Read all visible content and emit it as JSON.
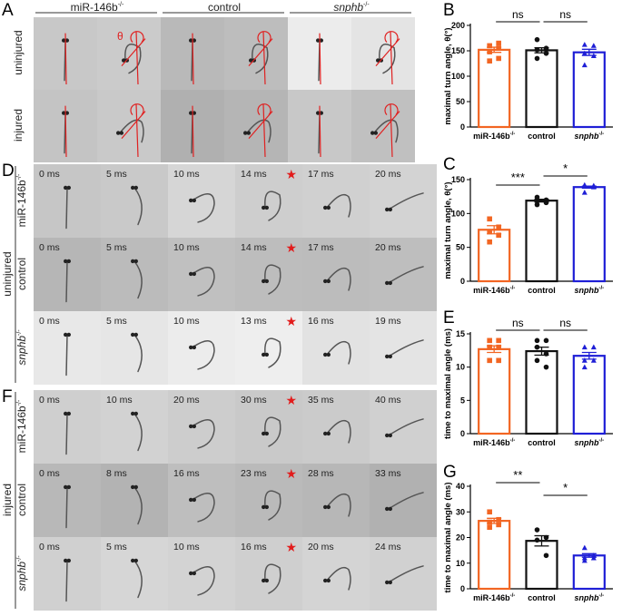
{
  "panelA": {
    "letter": "A",
    "groups": [
      "miR-146b",
      "control",
      "snphb"
    ],
    "group_superscript": "-/-",
    "rows": [
      "uninjured",
      "injured"
    ],
    "theta_label": "θ",
    "tile_shades": [
      [
        "#c8c8c8",
        "#cbcbcb",
        "#b9b9b9",
        "#bdbdbd",
        "#ececec",
        "#e4e4e4"
      ],
      [
        "#c4c4c4",
        "#c9c9c9",
        "#b0b0b0",
        "#b5b5b5",
        "#c8c8c8",
        "#c0c0c0"
      ]
    ]
  },
  "panelD": {
    "letter": "D",
    "condition": "uninjured",
    "rows": [
      {
        "label": "miR-146b",
        "sup": "-/-",
        "italic": false,
        "times": [
          "0 ms",
          "5 ms",
          "10 ms",
          "14 ms",
          "17 ms",
          "20 ms"
        ],
        "star_index": 3,
        "shades": [
          "#c6c6c6",
          "#c9c9c9",
          "#d6d6d6",
          "#cecece",
          "#d0d0d0",
          "#d3d3d3"
        ]
      },
      {
        "label": "control",
        "sup": "",
        "italic": false,
        "times": [
          "0 ms",
          "5 ms",
          "10 ms",
          "14 ms",
          "17 ms",
          "20 ms"
        ],
        "star_index": 3,
        "shades": [
          "#b6b6b6",
          "#bbbbbb",
          "#c0c0c0",
          "#bdbdbd",
          "#bcbcbc",
          "#bebebe"
        ]
      },
      {
        "label": "snphb",
        "sup": "-/-",
        "italic": true,
        "times": [
          "0 ms",
          "5 ms",
          "10 ms",
          "13 ms",
          "16 ms",
          "19 ms"
        ],
        "star_index": 3,
        "shades": [
          "#e8e8e8",
          "#e6e6e6",
          "#ececec",
          "#eeeeee",
          "#e2e2e2",
          "#e4e4e4"
        ]
      }
    ]
  },
  "panelF": {
    "letter": "F",
    "condition": "injured",
    "rows": [
      {
        "label": "miR-146b",
        "sup": "-/-",
        "italic": false,
        "times": [
          "0 ms",
          "10 ms",
          "20 ms",
          "30 ms",
          "35 ms",
          "40 ms"
        ],
        "star_index": 3,
        "shades": [
          "#cfcfcf",
          "#d2d2d2",
          "#cdcdcd",
          "#c9c9c9",
          "#cbcbcb",
          "#d0d0d0"
        ]
      },
      {
        "label": "control",
        "sup": "",
        "italic": false,
        "times": [
          "0 ms",
          "8 ms",
          "16 ms",
          "23 ms",
          "28 ms",
          "33 ms"
        ],
        "star_index": 3,
        "shades": [
          "#b8b8b8",
          "#b3b3b3",
          "#bebebe",
          "#bababa",
          "#b7b7b7",
          "#b1b1b1"
        ]
      },
      {
        "label": "snphb",
        "sup": "-/-",
        "italic": true,
        "times": [
          "0 ms",
          "5 ms",
          "10 ms",
          "16 ms",
          "20 ms",
          "24 ms"
        ],
        "star_index": 3,
        "shades": [
          "#d0d0d0",
          "#d6d6d6",
          "#d3d3d3",
          "#cfcfcf",
          "#d4d4d4",
          "#d1d1d1"
        ]
      }
    ]
  },
  "colors": {
    "mir": "#f26522",
    "control": "#111111",
    "snphb": "#1f1fd6",
    "star": "#e21c1c"
  },
  "chart_data": [
    {
      "panel": "B",
      "type": "bar",
      "ylabel": "maximal turn angle, θ(°)",
      "ylim": [
        0,
        200
      ],
      "yticks": [
        0,
        50,
        100,
        150,
        200
      ],
      "categories": [
        "miR-146b-/-",
        "control",
        "snphb-/-"
      ],
      "values": [
        152,
        151,
        147
      ],
      "sem": [
        5,
        5,
        6
      ],
      "points": [
        [
          148,
          135,
          130,
          155,
          160,
          165
        ],
        [
          172,
          155,
          152,
          152,
          135,
          145
        ],
        [
          162,
          160,
          145,
          140,
          122
        ]
      ],
      "markers": [
        "square",
        "circle",
        "triangle"
      ],
      "significance": [
        {
          "from": 0,
          "to": 1,
          "label": "ns"
        },
        {
          "from": 1,
          "to": 2,
          "label": "ns"
        }
      ]
    },
    {
      "panel": "C",
      "type": "bar",
      "ylabel": "maximal turn angle, θ(°)",
      "ylim": [
        0,
        150
      ],
      "yticks": [
        0,
        50,
        100,
        150
      ],
      "categories": [
        "miR-146b-/-",
        "control",
        "snphb-/-"
      ],
      "values": [
        76,
        119,
        139
      ],
      "sem": [
        6,
        2,
        1.5
      ],
      "points": [
        [
          92,
          80,
          73,
          68,
          58
        ],
        [
          124,
          120,
          118,
          116,
          113
        ],
        [
          142,
          141,
          140,
          139,
          131
        ]
      ],
      "markers": [
        "square",
        "circle",
        "triangle"
      ],
      "significance": [
        {
          "from": 0,
          "to": 1,
          "label": "***"
        },
        {
          "from": 1,
          "to": 2,
          "label": "*"
        }
      ]
    },
    {
      "panel": "E",
      "type": "bar",
      "ylabel": "time to maximal angle (ms)",
      "ylim": [
        0,
        15
      ],
      "yticks": [
        0,
        5,
        10,
        15
      ],
      "categories": [
        "miR-146b-/-",
        "control",
        "snphb-/-"
      ],
      "values": [
        12.7,
        12.4,
        11.7
      ],
      "sem": [
        0.5,
        0.6,
        0.5
      ],
      "points": [
        [
          14,
          14,
          13,
          13,
          11,
          11
        ],
        [
          14,
          14,
          13,
          12,
          11,
          10
        ],
        [
          13,
          13,
          11,
          11,
          10
        ]
      ],
      "markers": [
        "square",
        "circle",
        "triangle"
      ],
      "significance": [
        {
          "from": 0,
          "to": 1,
          "label": "ns"
        },
        {
          "from": 1,
          "to": 2,
          "label": "ns"
        }
      ]
    },
    {
      "panel": "G",
      "type": "bar",
      "ylabel": "time to maximal angle (ms)",
      "ylim": [
        0,
        40
      ],
      "yticks": [
        0,
        10,
        20,
        30,
        40
      ],
      "categories": [
        "miR-146b-/-",
        "control",
        "snphb-/-"
      ],
      "values": [
        26.5,
        18.7,
        13
      ],
      "sem": [
        1,
        2,
        0.7
      ],
      "points": [
        [
          30,
          27,
          26,
          25,
          24
        ],
        [
          23,
          20,
          19,
          13
        ],
        [
          16,
          13,
          12,
          12,
          11
        ]
      ],
      "markers": [
        "square",
        "circle",
        "triangle"
      ],
      "significance": [
        {
          "from": 0,
          "to": 1,
          "label": "**"
        },
        {
          "from": 1,
          "to": 2,
          "label": "*"
        }
      ]
    }
  ]
}
